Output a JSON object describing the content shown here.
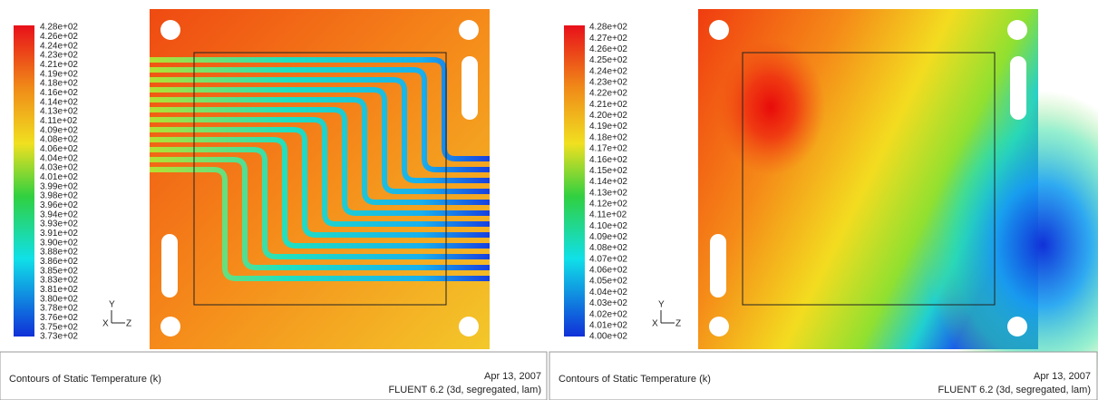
{
  "panels": [
    {
      "colorbar_labels": [
        "4.28e+02",
        "4.26e+02",
        "4.24e+02",
        "4.23e+02",
        "4.21e+02",
        "4.19e+02",
        "4.18e+02",
        "4.16e+02",
        "4.14e+02",
        "4.13e+02",
        "4.11e+02",
        "4.09e+02",
        "4.08e+02",
        "4.06e+02",
        "4.04e+02",
        "4.03e+02",
        "4.01e+02",
        "3.99e+02",
        "3.98e+02",
        "3.96e+02",
        "3.94e+02",
        "3.93e+02",
        "3.91e+02",
        "3.90e+02",
        "3.88e+02",
        "3.86e+02",
        "3.85e+02",
        "3.83e+02",
        "3.81e+02",
        "3.80e+02",
        "3.78e+02",
        "3.76e+02",
        "3.75e+02",
        "3.73e+02"
      ],
      "axes": {
        "y": "Y",
        "x": "X",
        "z": "Z"
      },
      "caption": "Contours of Static Temperature (k)",
      "date": "Apr 13, 2007",
      "software": "FLUENT 6.2 (3d, segregated, lam)"
    },
    {
      "colorbar_labels": [
        "4.28e+02",
        "4.27e+02",
        "4.26e+02",
        "4.25e+02",
        "4.24e+02",
        "4.23e+02",
        "4.22e+02",
        "4.21e+02",
        "4.20e+02",
        "4.19e+02",
        "4.18e+02",
        "4.17e+02",
        "4.16e+02",
        "4.15e+02",
        "4.14e+02",
        "4.13e+02",
        "4.12e+02",
        "4.11e+02",
        "4.10e+02",
        "4.09e+02",
        "4.08e+02",
        "4.07e+02",
        "4.06e+02",
        "4.05e+02",
        "4.04e+02",
        "4.03e+02",
        "4.02e+02",
        "4.01e+02",
        "4.00e+02"
      ],
      "axes": {
        "y": "Y",
        "x": "X",
        "z": "Z"
      },
      "caption": "Contours of Static Temperature (k)",
      "date": "Apr 13, 2007",
      "software": "FLUENT 6.2 (3d, segregated, lam)"
    }
  ]
}
